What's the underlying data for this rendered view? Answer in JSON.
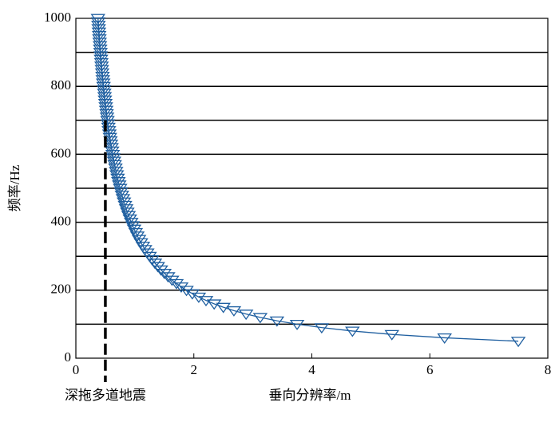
{
  "chart_data": {
    "type": "line",
    "xlabel": "垂向分辨率/m",
    "ylabel": "频率/Hz",
    "x": [
      7.5,
      6.25,
      5.357,
      4.688,
      4.167,
      3.75,
      3.409,
      3.125,
      2.885,
      2.679,
      2.5,
      2.344,
      2.206,
      2.083,
      1.974,
      1.875,
      1.786,
      1.705,
      1.63,
      1.563,
      1.5,
      1.442,
      1.389,
      1.339,
      1.293,
      1.25,
      1.21,
      1.172,
      1.136,
      1.103,
      1.071,
      1.042,
      1.014,
      0.987,
      0.962,
      0.938,
      0.915,
      0.893,
      0.872,
      0.852,
      0.833,
      0.815,
      0.798,
      0.781,
      0.765,
      0.75,
      0.735,
      0.721,
      0.708,
      0.694,
      0.682,
      0.67,
      0.658,
      0.647,
      0.636,
      0.625,
      0.615,
      0.605,
      0.595,
      0.586,
      0.577,
      0.568,
      0.56,
      0.551,
      0.543,
      0.536,
      0.528,
      0.521,
      0.514,
      0.507,
      0.5,
      0.493,
      0.487,
      0.481,
      0.475,
      0.469,
      0.463,
      0.457,
      0.452,
      0.446,
      0.441,
      0.436,
      0.431,
      0.426,
      0.421,
      0.417,
      0.412,
      0.408,
      0.403,
      0.399,
      0.395,
      0.391,
      0.387,
      0.383,
      0.379,
      0.375
    ],
    "values": [
      50,
      60,
      70,
      80,
      90,
      100,
      110,
      120,
      130,
      140,
      150,
      160,
      170,
      180,
      190,
      200,
      210,
      220,
      230,
      240,
      250,
      260,
      270,
      280,
      290,
      300,
      310,
      320,
      330,
      340,
      350,
      360,
      370,
      380,
      390,
      400,
      410,
      420,
      430,
      440,
      450,
      460,
      470,
      480,
      490,
      500,
      510,
      520,
      530,
      540,
      550,
      560,
      570,
      580,
      590,
      600,
      610,
      620,
      630,
      640,
      650,
      660,
      670,
      680,
      690,
      700,
      710,
      720,
      730,
      740,
      750,
      760,
      770,
      780,
      790,
      800,
      810,
      820,
      830,
      840,
      850,
      860,
      870,
      880,
      890,
      900,
      910,
      920,
      930,
      940,
      950,
      960,
      970,
      980,
      990,
      1000
    ],
    "color": "#1f5fa0",
    "xlim": [
      0,
      8
    ],
    "xticks": [
      0,
      2,
      4,
      6,
      8
    ],
    "ylim": [
      0,
      1000
    ],
    "yticks": [
      0,
      200,
      400,
      600,
      800,
      1000
    ],
    "grid_lines": [
      100,
      200,
      300,
      400,
      500,
      600,
      700,
      800,
      900
    ],
    "reference_line": {
      "label": "深拖多道地震",
      "x": 0.5,
      "y": [
        0,
        700
      ]
    }
  }
}
